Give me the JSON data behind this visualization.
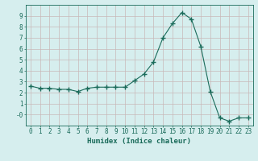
{
  "x": [
    0,
    1,
    2,
    3,
    4,
    5,
    6,
    7,
    8,
    9,
    10,
    11,
    12,
    13,
    14,
    15,
    16,
    17,
    18,
    19,
    20,
    21,
    22,
    23
  ],
  "y": [
    2.6,
    2.4,
    2.4,
    2.3,
    2.3,
    2.1,
    2.4,
    2.5,
    2.5,
    2.5,
    2.5,
    3.1,
    3.7,
    4.8,
    7.0,
    8.3,
    9.3,
    8.7,
    6.2,
    2.1,
    -0.3,
    -0.6,
    -0.3,
    -0.3
  ],
  "line_color": "#1a6b5a",
  "marker": "+",
  "marker_size": 4,
  "bg_color": "#d6eeee",
  "grid_color": "#c8b8b8",
  "xlabel": "Humidex (Indice chaleur)",
  "xlim": [
    -0.5,
    23.5
  ],
  "ylim": [
    -1.0,
    10.0
  ],
  "yticks": [
    0,
    1,
    2,
    3,
    4,
    5,
    6,
    7,
    8,
    9
  ],
  "ytick_labels": [
    "-0",
    "1",
    "2",
    "3",
    "4",
    "5",
    "6",
    "7",
    "8",
    "9"
  ],
  "xticks": [
    0,
    1,
    2,
    3,
    4,
    5,
    6,
    7,
    8,
    9,
    10,
    11,
    12,
    13,
    14,
    15,
    16,
    17,
    18,
    19,
    20,
    21,
    22,
    23
  ],
  "label_fontsize": 6.5,
  "tick_fontsize": 5.5
}
